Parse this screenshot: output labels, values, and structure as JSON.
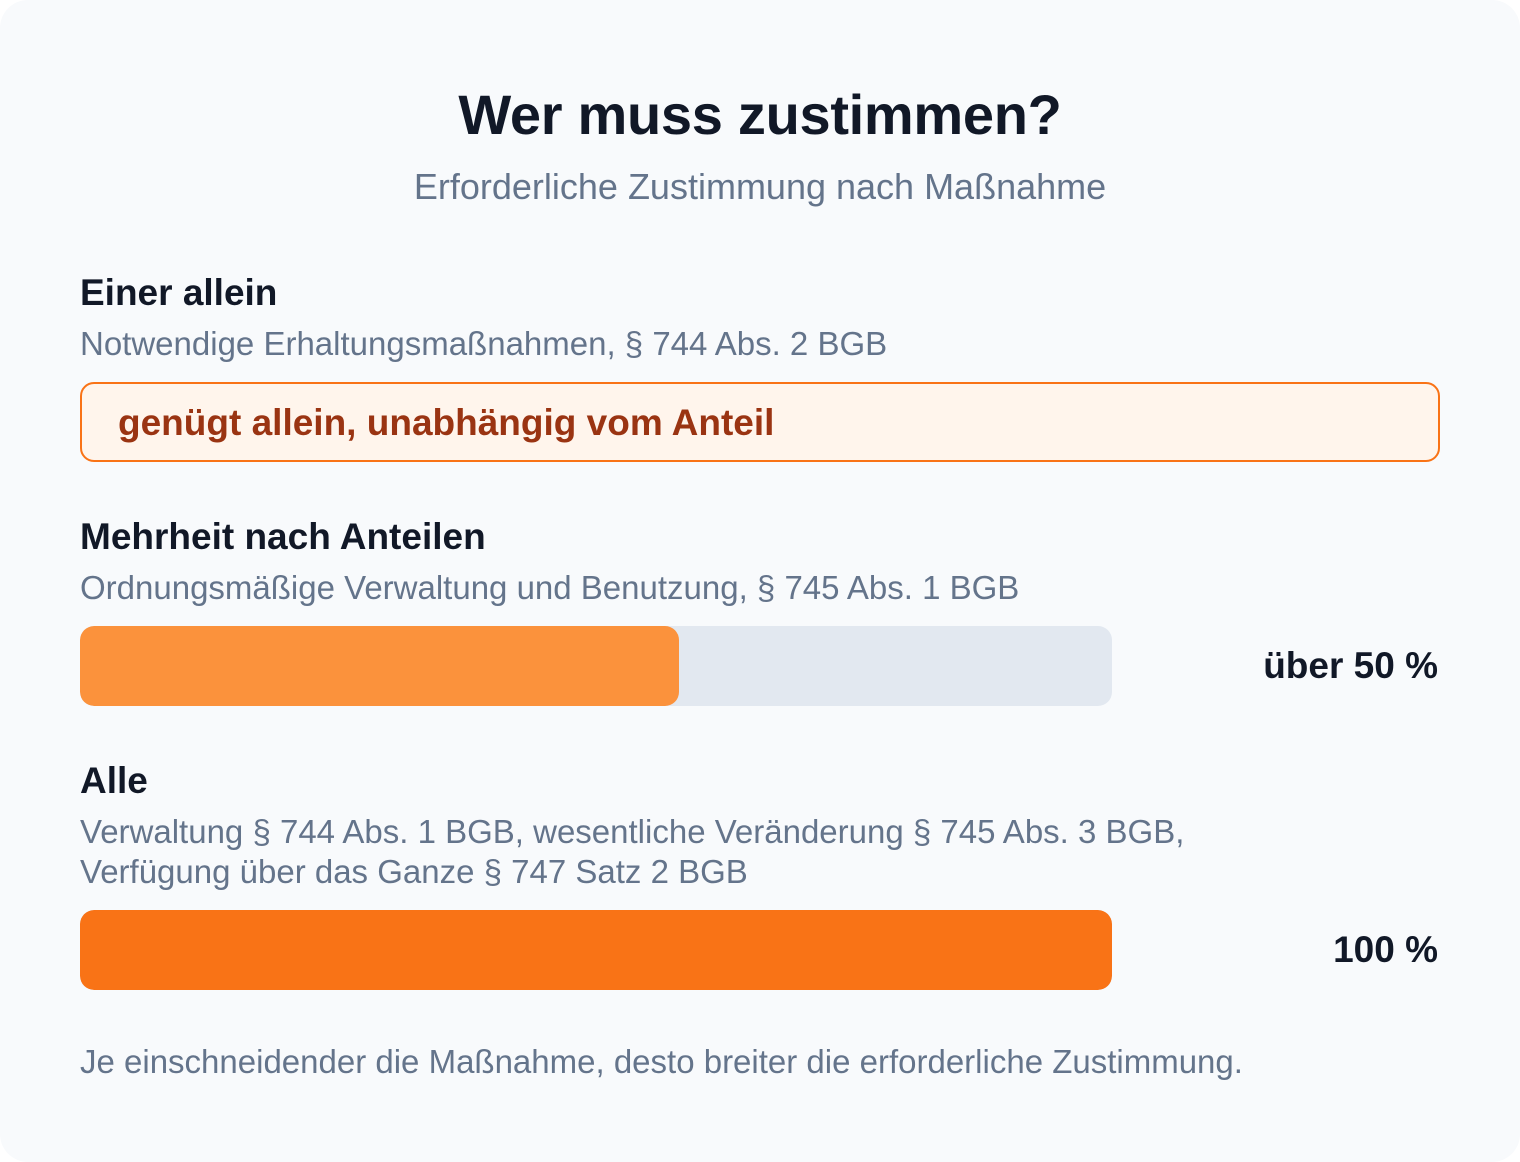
{
  "header": {
    "title": "Wer muss zustimmen?",
    "subtitle": "Erforderliche Zustimmung nach Maßnahme"
  },
  "colors": {
    "background": "#f8fafc",
    "title": "#111827",
    "muted_text": "#64748b",
    "accent_orange": "#f97316",
    "accent_orange_light": "#fb923c",
    "callout_background": "#fff5ec",
    "callout_text": "#9a3412",
    "bar_track": "#e2e8f0"
  },
  "sections": [
    {
      "title": "Einer allein",
      "description": "Notwendige Erhaltungsmaßnahmen, § 744 Abs. 2 BGB",
      "callout": "genügt allein, unabhängig vom Anteil"
    },
    {
      "title": "Mehrheit nach Anteilen",
      "description": "Ordnungsmäßige Verwaltung und Benutzung, § 745 Abs. 1 BGB",
      "value_label": "über 50 %",
      "fill_fraction": 0.58,
      "fill_color": "#fb923c"
    },
    {
      "title": "Alle",
      "description_line1": "Verwaltung § 744 Abs. 1 BGB, wesentliche Veränderung § 745 Abs. 3 BGB,",
      "description_line2": "Verfügung über das Ganze § 747 Satz 2 BGB",
      "value_label": "100 %",
      "fill_fraction": 1.0,
      "fill_color": "#f97316"
    }
  ],
  "footnote": "Je einschneidender die Maßnahme, desto breiter die erforderliche Zustimmung."
}
